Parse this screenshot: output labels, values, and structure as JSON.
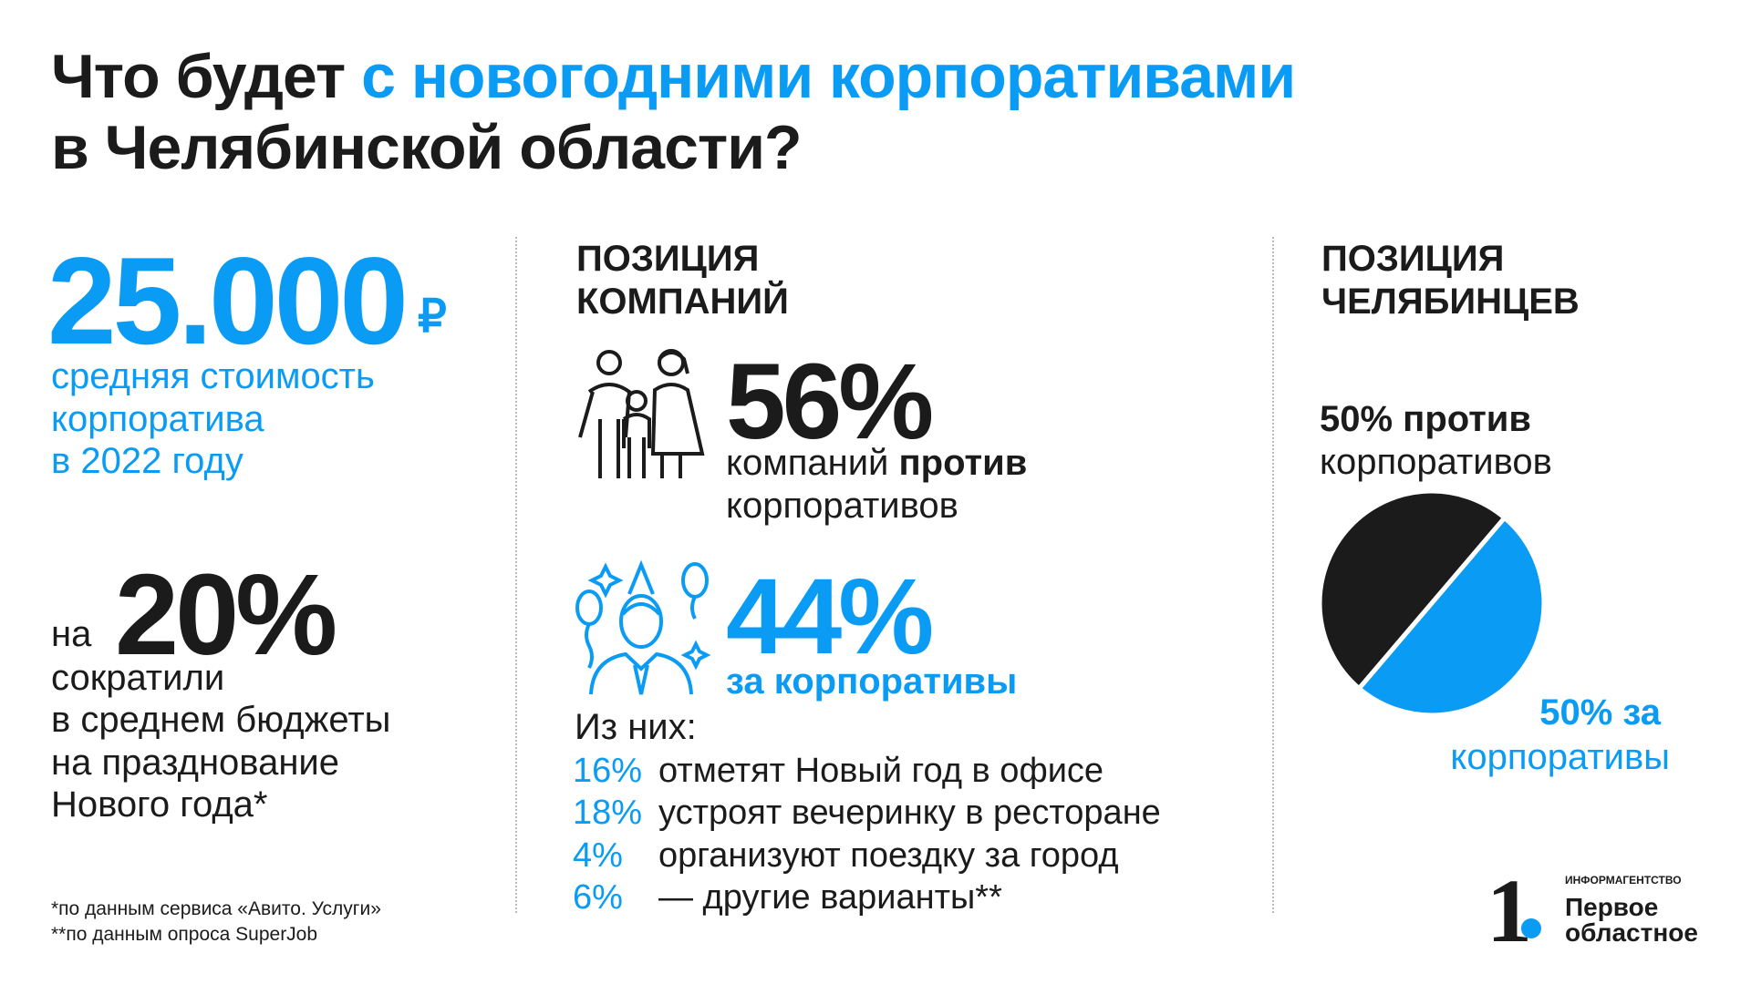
{
  "title": {
    "part1": "Что будет ",
    "part2": "с новогодними корпоративами",
    "line2": "в Челябинской области?"
  },
  "left": {
    "cost_value": "25.000",
    "currency": "₽",
    "cost_desc": [
      "средняя стоимость",
      "корпоратива",
      "в 2022 году"
    ],
    "cut_prefix": "на",
    "cut_value": "20%",
    "cut_desc": [
      "сократили",
      "в среднем бюджеты",
      "на празднование",
      "Нового года*"
    ],
    "footnotes": [
      "*по данным сервиса «Авито. Услуги»",
      "**по данным опроса SuperJob"
    ]
  },
  "companies": {
    "heading": [
      "ПОЗИЦИЯ",
      "КОМПАНИЙ"
    ],
    "against_value": "56%",
    "against_text": "компаний ",
    "against_bold": "против",
    "against_line2": "корпоративов",
    "for_value": "44%",
    "for_text": "за корпоративы",
    "of_them": "Из них:",
    "breakdown": [
      {
        "pct": "16%",
        "text": "отметят Новый год в офисе"
      },
      {
        "pct": "18%",
        "text": "устроят вечеринку в ресторане"
      },
      {
        "pct": "4%",
        "text": "организуют поездку за город"
      },
      {
        "pct": "6%",
        "text": "— другие варианты**"
      }
    ]
  },
  "citizens": {
    "heading": [
      "ПОЗИЦИЯ",
      "ЧЕЛЯБИНЦЕВ"
    ],
    "against_label": "50% против",
    "against_line2": "корпоративов",
    "for_label": "50% за",
    "for_line2": "корпоративы"
  },
  "chart_data": {
    "type": "pie",
    "categories": [
      "против",
      "за"
    ],
    "values": [
      50,
      50
    ],
    "colors": [
      "#1b1b1b",
      "#0a9bf5"
    ]
  },
  "logo": {
    "kicker": "ИНФОРМАГЕНТСТВО",
    "name1": "Первое",
    "name2": "областное",
    "mark": "1."
  },
  "colors": {
    "accent": "#0a9bf5",
    "text": "#1b1b1b"
  }
}
